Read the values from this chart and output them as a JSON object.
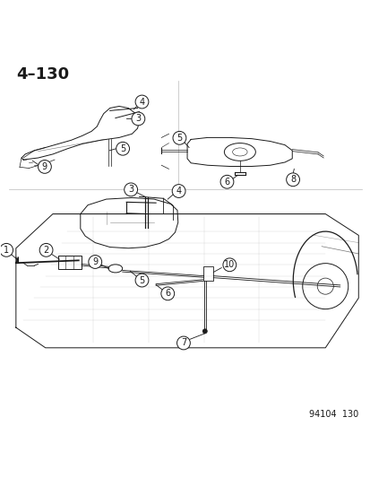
{
  "title": "4–130",
  "footer": "94104  130",
  "bg_color": "#ffffff",
  "title_fontsize": 13,
  "title_fontweight": "bold",
  "footer_fontsize": 7,
  "line_color": "#1a1a1a",
  "circle_bg": "#ffffff",
  "circle_edge": "#1a1a1a",
  "lw_main": 0.7,
  "lw_thin": 0.5
}
